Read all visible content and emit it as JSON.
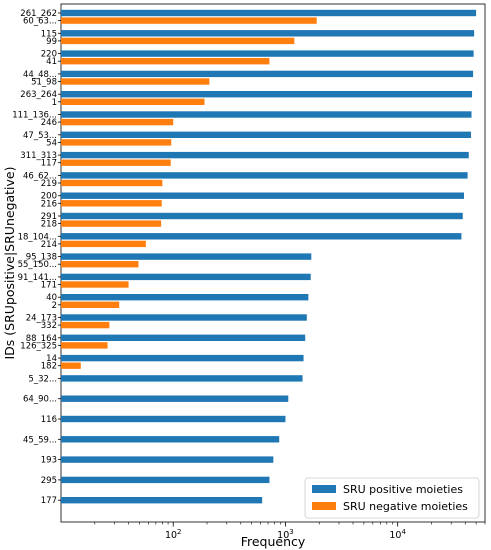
{
  "chart_data": {
    "type": "bar",
    "orientation": "horizontal",
    "xlabel": "Frequency",
    "ylabel": "IDs (SRUpositive|SRUnegative)",
    "xscale": "log",
    "xlim": [
      10,
      60000
    ],
    "x_ticks": [
      {
        "value": 100,
        "base": "10",
        "exp": "2"
      },
      {
        "value": 1000,
        "base": "10",
        "exp": "3"
      },
      {
        "value": 10000,
        "base": "10",
        "exp": "4"
      }
    ],
    "grid": false,
    "legend_position": "lower-right",
    "series": [
      {
        "name": "SRU positive moieties",
        "color": "#1f77b4"
      },
      {
        "name": "SRU negative moieties",
        "color": "#ff7f0e"
      }
    ],
    "groups": [
      {
        "positive_label": "261_262",
        "negative_label": "60_63...",
        "positive": 50000,
        "negative": 1900
      },
      {
        "positive_label": "115",
        "negative_label": "99",
        "positive": 48000,
        "negative": 1200
      },
      {
        "positive_label": "220",
        "negative_label": "41",
        "positive": 47500,
        "negative": 720
      },
      {
        "positive_label": "44_48...",
        "negative_label": "51_98",
        "positive": 47000,
        "negative": 210
      },
      {
        "positive_label": "263_264",
        "negative_label": "1",
        "positive": 46000,
        "negative": 190
      },
      {
        "positive_label": "111_136...",
        "negative_label": "246",
        "positive": 45500,
        "negative": 100
      },
      {
        "positive_label": "47_53...",
        "negative_label": "54",
        "positive": 45000,
        "negative": 96
      },
      {
        "positive_label": "311_313",
        "negative_label": "117",
        "positive": 43000,
        "negative": 95
      },
      {
        "positive_label": "46_62...",
        "negative_label": "219",
        "positive": 42000,
        "negative": 80
      },
      {
        "positive_label": "200",
        "negative_label": "216",
        "positive": 39000,
        "negative": 79
      },
      {
        "positive_label": "291",
        "negative_label": "218",
        "positive": 38000,
        "negative": 78
      },
      {
        "positive_label": "18_104...",
        "negative_label": "214",
        "positive": 37000,
        "negative": 57
      },
      {
        "positive_label": "95_138",
        "negative_label": "55_150...",
        "positive": 1700,
        "negative": 49
      },
      {
        "positive_label": "91_141...",
        "negative_label": "171",
        "positive": 1680,
        "negative": 40
      },
      {
        "positive_label": "40",
        "negative_label": "2",
        "positive": 1600,
        "negative": 33
      },
      {
        "positive_label": "24_173",
        "negative_label": "332",
        "positive": 1550,
        "negative": 27
      },
      {
        "positive_label": "88_164",
        "negative_label": "126_325",
        "positive": 1500,
        "negative": 26
      },
      {
        "positive_label": "14",
        "negative_label": "182",
        "positive": 1450,
        "negative": 15
      },
      {
        "positive_label": "5_32...",
        "negative_label": "",
        "positive": 1420,
        "negative": null
      },
      {
        "positive_label": "64_90...",
        "negative_label": "",
        "positive": 1060,
        "negative": null
      },
      {
        "positive_label": "116",
        "negative_label": "",
        "positive": 1000,
        "negative": null
      },
      {
        "positive_label": "45_59...",
        "negative_label": "",
        "positive": 880,
        "negative": null
      },
      {
        "positive_label": "193",
        "negative_label": "",
        "positive": 780,
        "negative": null
      },
      {
        "positive_label": "295",
        "negative_label": "",
        "positive": 720,
        "negative": null
      },
      {
        "positive_label": "177",
        "negative_label": "",
        "positive": 620,
        "negative": null
      }
    ]
  }
}
